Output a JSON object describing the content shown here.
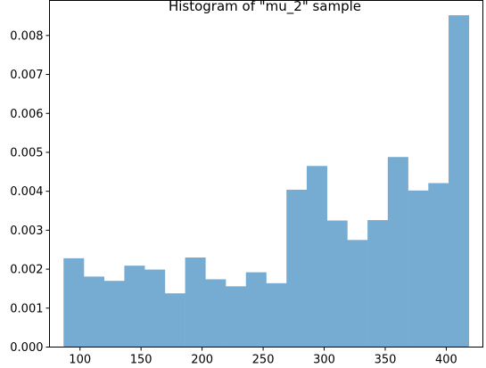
{
  "chart_data": {
    "type": "bar",
    "title": "Histogram of \"mu_2\" sample",
    "xlabel": "",
    "ylabel": "",
    "xlim": [
      75,
      430
    ],
    "ylim": [
      0,
      0.0089
    ],
    "x_ticks": [
      100,
      150,
      200,
      250,
      300,
      350,
      400
    ],
    "x_tick_labels": [
      "100",
      "150",
      "200",
      "250",
      "300",
      "350",
      "400"
    ],
    "y_ticks": [
      0,
      0.001,
      0.002,
      0.003,
      0.004,
      0.005,
      0.006,
      0.007,
      0.008
    ],
    "y_tick_labels": [
      "0.000",
      "0.001",
      "0.002",
      "0.003",
      "0.004",
      "0.005",
      "0.006",
      "0.007",
      "0.008"
    ],
    "bin_edges": [
      86.5,
      103.1,
      119.7,
      136.3,
      152.9,
      169.5,
      186.1,
      202.7,
      219.3,
      235.9,
      252.5,
      269.1,
      285.7,
      302.3,
      318.9,
      335.5,
      352.1,
      368.7,
      385.3,
      401.9,
      418.5
    ],
    "values": [
      0.00228,
      0.00181,
      0.0017,
      0.00209,
      0.00199,
      0.00138,
      0.0023,
      0.00174,
      0.00156,
      0.00192,
      0.00164,
      0.00404,
      0.00465,
      0.00325,
      0.00275,
      0.00326,
      0.00488,
      0.00402,
      0.00421,
      0.00852
    ],
    "bar_color": "#77acd2",
    "grid": false
  }
}
